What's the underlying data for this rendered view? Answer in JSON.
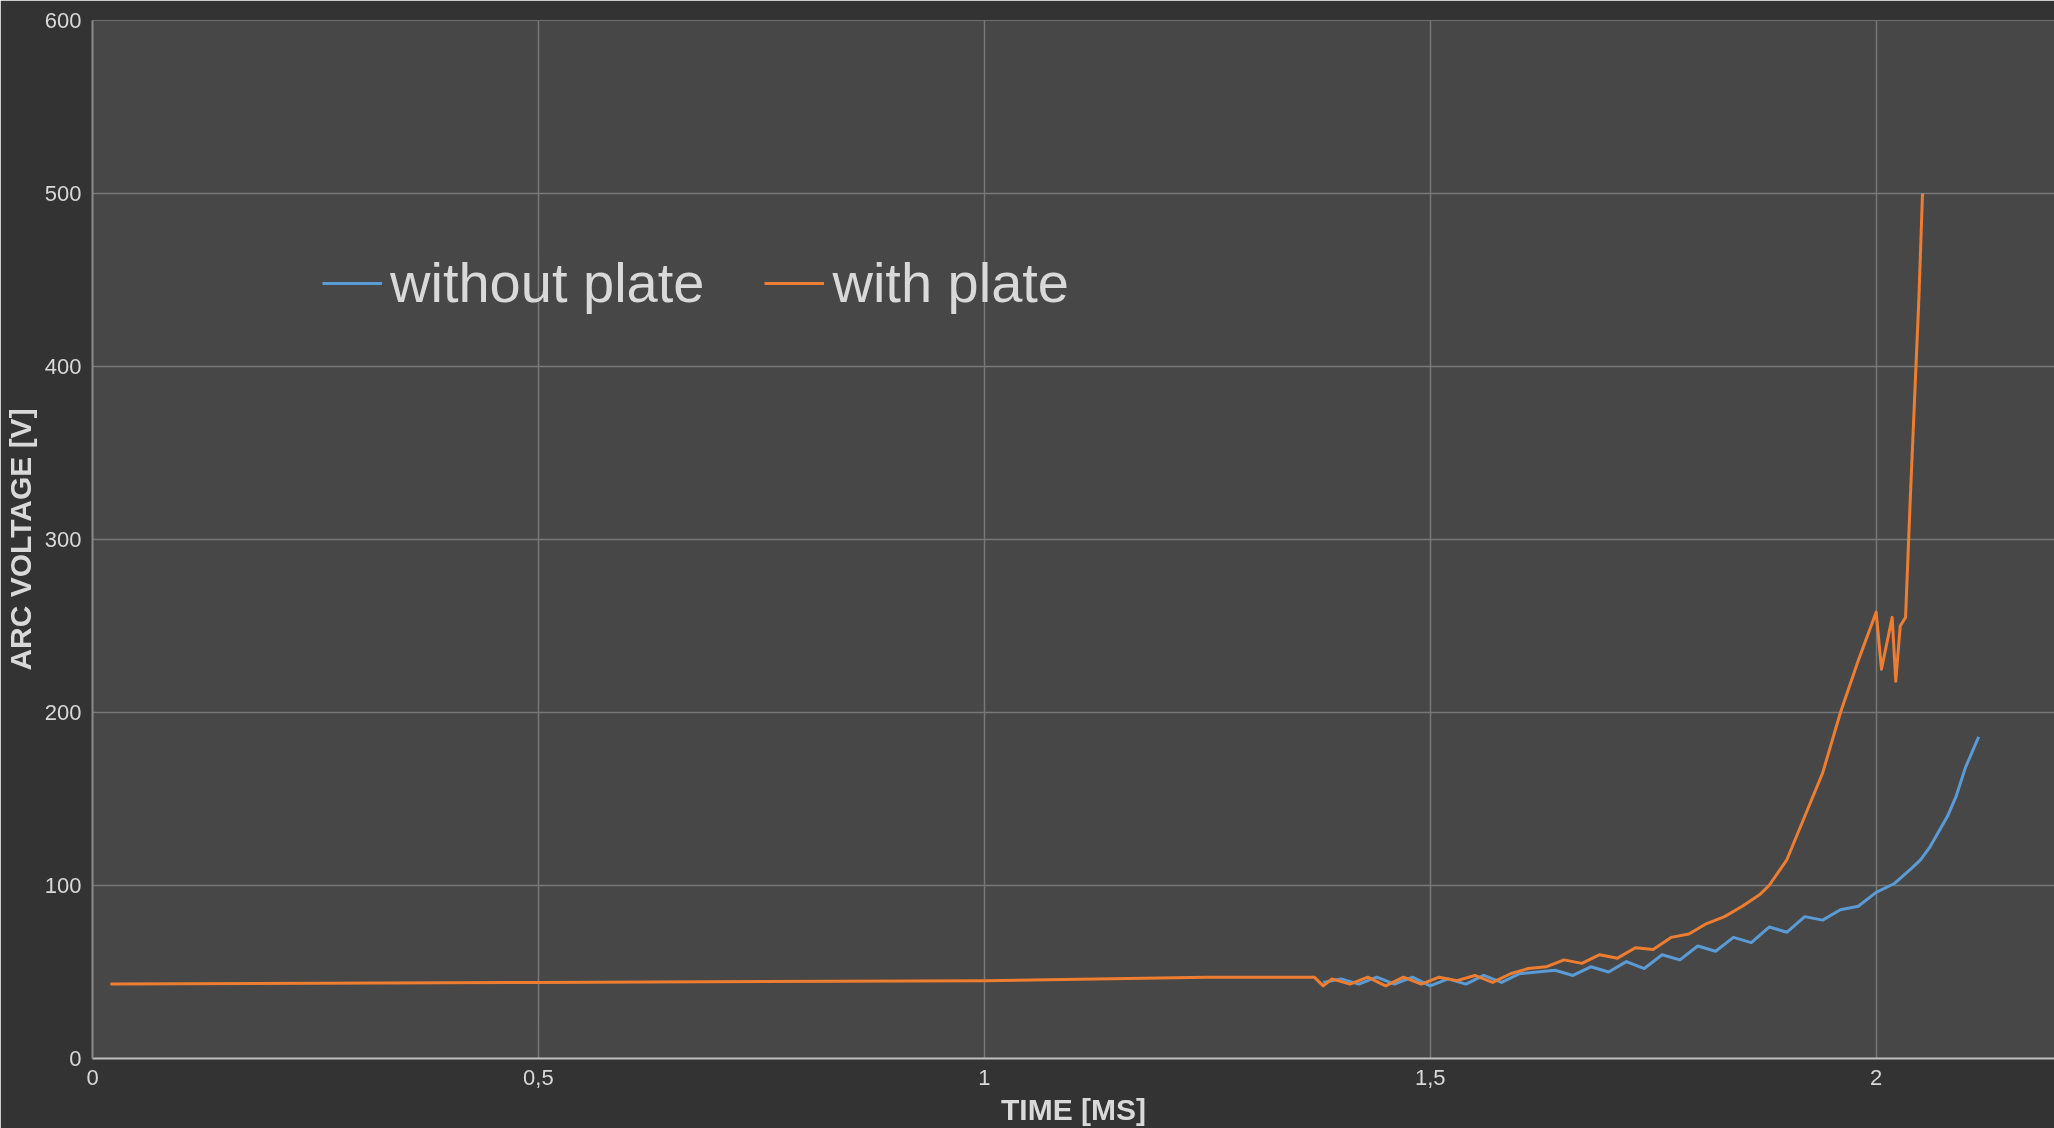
{
  "chart_data": {
    "type": "line",
    "xlabel": "TIME [MS]",
    "ylabel": "ARC VOLTAGE [V]",
    "xlim": [
      0,
      2.2
    ],
    "ylim": [
      0,
      600
    ],
    "xticks": [
      0,
      {
        "value": 0.5,
        "label": "0,5"
      },
      1,
      {
        "value": 1.5,
        "label": "1,5"
      },
      2
    ],
    "yticks": [
      0,
      100,
      200,
      300,
      400,
      500,
      600
    ],
    "grid": true,
    "legend": "top left",
    "line_style": "solid",
    "marker": "none",
    "series": [
      {
        "name": "without plate",
        "color": "#5b9bd5",
        "x": [
          1.38,
          1.4,
          1.42,
          1.44,
          1.46,
          1.48,
          1.5,
          1.52,
          1.54,
          1.56,
          1.58,
          1.6,
          1.62,
          1.64,
          1.66,
          1.68,
          1.7,
          1.72,
          1.74,
          1.76,
          1.78,
          1.8,
          1.82,
          1.84,
          1.86,
          1.88,
          1.9,
          1.92,
          1.94,
          1.96,
          1.98,
          2.0,
          2.02,
          2.04,
          2.05,
          2.06,
          2.08,
          2.09,
          2.1,
          2.115
        ],
        "values": [
          44,
          46,
          43,
          47,
          43,
          47,
          42,
          46,
          43,
          48,
          44,
          49,
          50,
          51,
          48,
          53,
          50,
          56,
          52,
          60,
          57,
          65,
          62,
          70,
          67,
          76,
          73,
          82,
          80,
          86,
          88,
          96,
          101,
          110,
          115,
          122,
          140,
          152,
          168,
          186
        ]
      },
      {
        "name": "with plate",
        "color": "#ed7d31",
        "x": [
          0.02,
          0.5,
          1.0,
          1.25,
          1.37,
          1.38,
          1.39,
          1.41,
          1.43,
          1.45,
          1.47,
          1.49,
          1.51,
          1.53,
          1.55,
          1.57,
          1.59,
          1.61,
          1.63,
          1.65,
          1.67,
          1.69,
          1.71,
          1.73,
          1.75,
          1.77,
          1.79,
          1.81,
          1.83,
          1.85,
          1.87,
          1.88,
          1.9,
          1.92,
          1.94,
          1.96,
          1.98,
          2.0,
          2.006,
          2.012,
          2.018,
          2.022,
          2.027,
          2.033,
          2.038,
          2.043,
          2.048,
          2.052
        ],
        "values": [
          43,
          44,
          45,
          47,
          47,
          42,
          46,
          43,
          47,
          42,
          47,
          43,
          47,
          45,
          48,
          44,
          49,
          52,
          53,
          57,
          55,
          60,
          58,
          64,
          63,
          70,
          72,
          78,
          82,
          88,
          95,
          100,
          115,
          140,
          165,
          200,
          230,
          258,
          225,
          240,
          255,
          218,
          250,
          255,
          320,
          380,
          440,
          500
        ]
      }
    ]
  }
}
